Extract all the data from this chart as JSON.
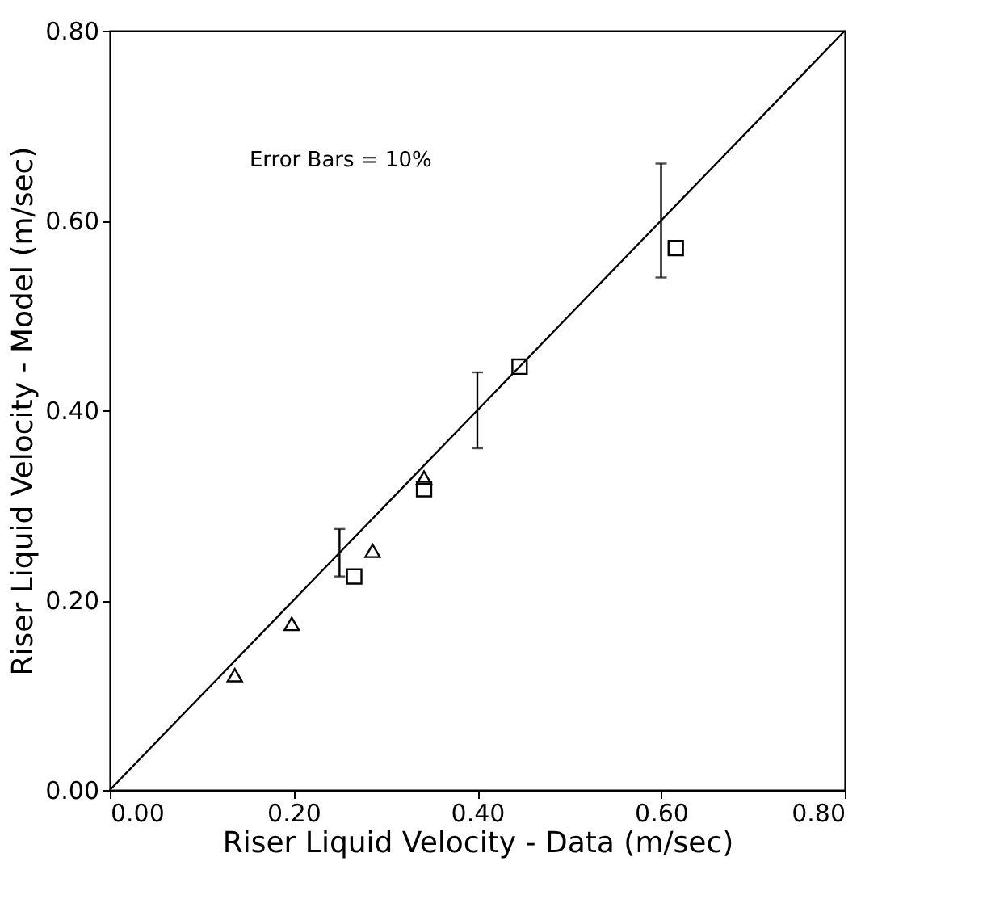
{
  "chart_data": {
    "type": "scatter",
    "xlabel": "Riser Liquid Velocity - Data (m/sec)",
    "ylabel": "Riser Liquid Velocity - Model (m/sec)",
    "annotations": [
      "Error Bars = 10%"
    ],
    "xlim": [
      0,
      0.8
    ],
    "ylim": [
      0,
      0.8
    ],
    "xticks": [
      {
        "value": 0,
        "label": "0.00"
      },
      {
        "value": 0.2,
        "label": "0.20"
      },
      {
        "value": 0.4,
        "label": "0.40"
      },
      {
        "value": 0.6,
        "label": "0.60"
      },
      {
        "value": 0.8,
        "label": "0.80"
      }
    ],
    "yticks": [
      {
        "value": 0,
        "label": "0.00"
      },
      {
        "value": 0.2,
        "label": "0.20"
      },
      {
        "value": 0.4,
        "label": "0.40"
      },
      {
        "value": 0.6,
        "label": "0.60"
      },
      {
        "value": 0.8,
        "label": "0.80"
      }
    ],
    "grid": false,
    "series": [
      {
        "marker": "triangle",
        "color": "#000000",
        "x": [
          0.136,
          0.198,
          0.286,
          0.342
        ],
        "values": [
          0.121,
          0.175,
          0.252,
          0.329
        ]
      },
      {
        "marker": "square",
        "color": "#000000",
        "x": [
          0.266,
          0.342,
          0.446,
          0.616
        ],
        "values": [
          0.225,
          0.317,
          0.446,
          0.571
        ]
      },
      {
        "type": "line",
        "line_style": "solid",
        "marker": "none",
        "color": "#000000",
        "x": [
          0,
          0.25,
          0.4,
          0.6,
          0.8
        ],
        "values": [
          0,
          0.25,
          0.4,
          0.6,
          0.8
        ],
        "errors": [
          null,
          0.025,
          0.04,
          0.06,
          null
        ]
      }
    ]
  }
}
